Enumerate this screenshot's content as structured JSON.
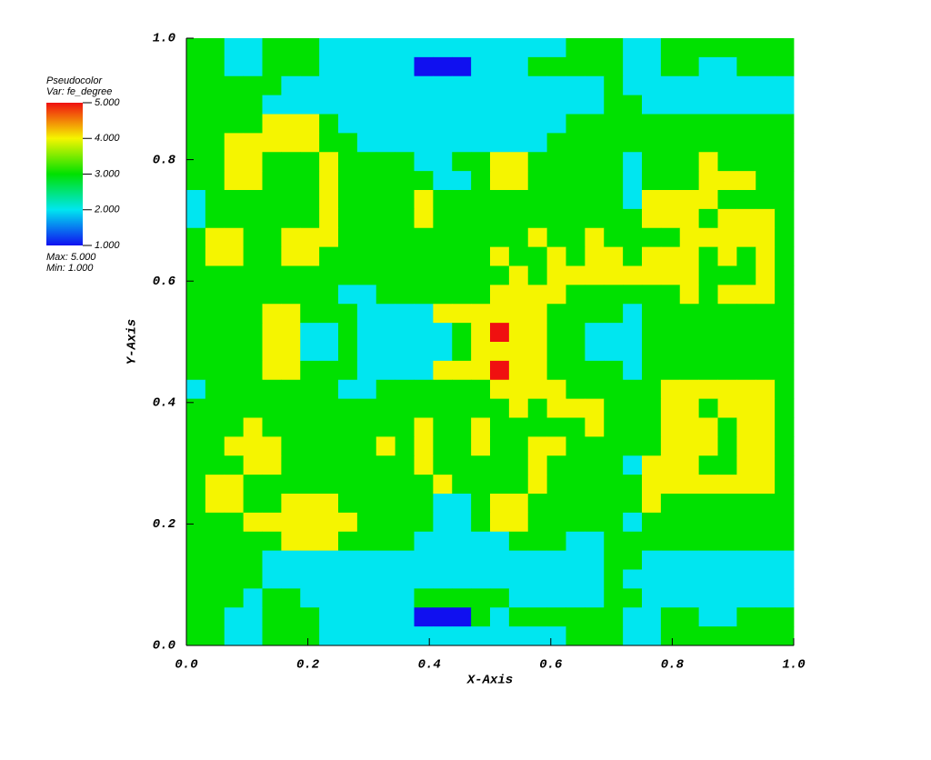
{
  "chart_data": {
    "type": "heatmap",
    "legend_title": "Pseudocolor",
    "variable_label": "Var: fe_degree",
    "max_label": "Max: 5.000",
    "min_label": "Min: 1.000",
    "xlabel": "X-Axis",
    "ylabel": "Y-Axis",
    "xlim": [
      0,
      1
    ],
    "ylim": [
      0,
      1
    ],
    "xticks": [
      {
        "value": 0,
        "label": "0.0"
      },
      {
        "value": 0.2,
        "label": "0.2"
      },
      {
        "value": 0.4,
        "label": "0.4"
      },
      {
        "value": 0.6,
        "label": "0.6"
      },
      {
        "value": 0.8,
        "label": "0.8"
      },
      {
        "value": 1,
        "label": "1.0"
      }
    ],
    "yticks": [
      {
        "value": 0,
        "label": "0.0"
      },
      {
        "value": 0.2,
        "label": "0.2"
      },
      {
        "value": 0.4,
        "label": "0.4"
      },
      {
        "value": 0.6,
        "label": "0.6"
      },
      {
        "value": 0.8,
        "label": "0.8"
      },
      {
        "value": 1,
        "label": "1.0"
      }
    ],
    "clim": [
      1,
      5
    ],
    "colorbar_ticks": [
      {
        "value": 5,
        "label": "5.000"
      },
      {
        "value": 4,
        "label": "4.000"
      },
      {
        "value": 3,
        "label": "3.000"
      },
      {
        "value": 2,
        "label": "2.000"
      },
      {
        "value": 1,
        "label": "1.000"
      }
    ],
    "colorscale": [
      "#1010f0",
      "#00e6f0",
      "#00e100",
      "#f5f500",
      "#f01010"
    ],
    "z": [
      [
        3,
        3,
        2,
        2,
        3,
        3,
        3,
        2,
        2,
        2,
        2,
        2,
        2,
        2,
        2,
        2,
        2,
        2,
        2,
        2,
        3,
        3,
        3,
        2,
        2,
        3,
        3,
        3,
        3,
        3,
        3,
        3
      ],
      [
        3,
        3,
        2,
        2,
        3,
        3,
        3,
        2,
        2,
        2,
        2,
        2,
        1,
        1,
        1,
        2,
        2,
        2,
        3,
        3,
        3,
        3,
        3,
        2,
        2,
        3,
        3,
        2,
        2,
        3,
        3,
        3
      ],
      [
        3,
        3,
        3,
        3,
        3,
        2,
        2,
        2,
        2,
        2,
        2,
        2,
        2,
        2,
        2,
        2,
        2,
        2,
        2,
        2,
        2,
        2,
        3,
        2,
        2,
        2,
        2,
        2,
        2,
        2,
        2,
        2
      ],
      [
        3,
        3,
        3,
        3,
        2,
        2,
        2,
        2,
        2,
        2,
        2,
        2,
        2,
        2,
        2,
        2,
        2,
        2,
        2,
        2,
        2,
        2,
        3,
        3,
        2,
        2,
        2,
        2,
        2,
        2,
        2,
        2
      ],
      [
        3,
        3,
        3,
        3,
        4,
        4,
        4,
        3,
        2,
        2,
        2,
        2,
        2,
        2,
        2,
        2,
        2,
        2,
        2,
        2,
        3,
        3,
        3,
        3,
        3,
        3,
        3,
        3,
        3,
        3,
        3,
        3
      ],
      [
        3,
        3,
        4,
        4,
        4,
        4,
        4,
        3,
        3,
        2,
        2,
        2,
        2,
        2,
        2,
        2,
        2,
        2,
        2,
        3,
        3,
        3,
        3,
        3,
        3,
        3,
        3,
        3,
        3,
        3,
        3,
        3
      ],
      [
        3,
        3,
        4,
        4,
        3,
        3,
        3,
        4,
        3,
        3,
        3,
        3,
        2,
        2,
        3,
        3,
        4,
        4,
        3,
        3,
        3,
        3,
        3,
        2,
        3,
        3,
        3,
        4,
        3,
        3,
        3,
        3
      ],
      [
        3,
        3,
        4,
        4,
        3,
        3,
        3,
        4,
        3,
        3,
        3,
        3,
        3,
        2,
        2,
        3,
        4,
        4,
        3,
        3,
        3,
        3,
        3,
        2,
        3,
        3,
        3,
        4,
        4,
        4,
        3,
        3
      ],
      [
        2,
        3,
        3,
        3,
        3,
        3,
        3,
        4,
        3,
        3,
        3,
        3,
        4,
        3,
        3,
        3,
        3,
        3,
        3,
        3,
        3,
        3,
        3,
        2,
        4,
        4,
        4,
        4,
        3,
        3,
        3,
        3
      ],
      [
        2,
        3,
        3,
        3,
        3,
        3,
        3,
        4,
        3,
        3,
        3,
        3,
        4,
        3,
        3,
        3,
        3,
        3,
        3,
        3,
        3,
        3,
        3,
        3,
        4,
        4,
        4,
        3,
        4,
        4,
        4,
        3
      ],
      [
        3,
        4,
        4,
        3,
        3,
        4,
        4,
        4,
        3,
        3,
        3,
        3,
        3,
        3,
        3,
        3,
        3,
        3,
        4,
        3,
        3,
        4,
        3,
        3,
        3,
        3,
        4,
        4,
        4,
        4,
        4,
        3
      ],
      [
        3,
        4,
        4,
        3,
        3,
        4,
        4,
        3,
        3,
        3,
        3,
        3,
        3,
        3,
        3,
        3,
        4,
        3,
        3,
        4,
        3,
        4,
        4,
        3,
        4,
        4,
        4,
        3,
        4,
        3,
        4,
        3
      ],
      [
        3,
        3,
        3,
        3,
        3,
        3,
        3,
        3,
        3,
        3,
        3,
        3,
        3,
        3,
        3,
        3,
        3,
        4,
        3,
        4,
        4,
        4,
        4,
        4,
        4,
        4,
        4,
        3,
        3,
        3,
        4,
        3
      ],
      [
        3,
        3,
        3,
        3,
        3,
        3,
        3,
        3,
        2,
        2,
        3,
        3,
        3,
        3,
        3,
        3,
        4,
        4,
        4,
        4,
        3,
        3,
        3,
        3,
        3,
        3,
        4,
        3,
        4,
        4,
        4,
        3
      ],
      [
        3,
        3,
        3,
        3,
        4,
        4,
        3,
        3,
        3,
        2,
        2,
        2,
        2,
        4,
        4,
        4,
        4,
        4,
        4,
        3,
        3,
        3,
        3,
        2,
        3,
        3,
        3,
        3,
        3,
        3,
        3,
        3
      ],
      [
        3,
        3,
        3,
        3,
        4,
        4,
        2,
        2,
        3,
        2,
        2,
        2,
        2,
        2,
        3,
        4,
        5,
        4,
        4,
        3,
        3,
        2,
        2,
        2,
        3,
        3,
        3,
        3,
        3,
        3,
        3,
        3
      ],
      [
        3,
        3,
        3,
        3,
        4,
        4,
        2,
        2,
        3,
        2,
        2,
        2,
        2,
        2,
        3,
        4,
        4,
        4,
        4,
        3,
        3,
        2,
        2,
        2,
        3,
        3,
        3,
        3,
        3,
        3,
        3,
        3
      ],
      [
        3,
        3,
        3,
        3,
        4,
        4,
        3,
        3,
        3,
        2,
        2,
        2,
        2,
        4,
        4,
        4,
        5,
        4,
        4,
        3,
        3,
        3,
        3,
        2,
        3,
        3,
        3,
        3,
        3,
        3,
        3,
        3
      ],
      [
        2,
        3,
        3,
        3,
        3,
        3,
        3,
        3,
        2,
        2,
        3,
        3,
        3,
        3,
        3,
        3,
        4,
        4,
        4,
        4,
        3,
        3,
        3,
        3,
        3,
        4,
        4,
        4,
        4,
        4,
        4,
        3
      ],
      [
        3,
        3,
        3,
        3,
        3,
        3,
        3,
        3,
        3,
        3,
        3,
        3,
        3,
        3,
        3,
        3,
        3,
        4,
        3,
        4,
        4,
        4,
        3,
        3,
        3,
        4,
        4,
        3,
        4,
        4,
        4,
        3
      ],
      [
        3,
        3,
        3,
        4,
        3,
        3,
        3,
        3,
        3,
        3,
        3,
        3,
        4,
        3,
        3,
        4,
        3,
        3,
        3,
        3,
        3,
        4,
        3,
        3,
        3,
        4,
        4,
        4,
        3,
        4,
        4,
        3
      ],
      [
        3,
        3,
        4,
        4,
        4,
        3,
        3,
        3,
        3,
        3,
        4,
        3,
        4,
        3,
        3,
        4,
        3,
        3,
        4,
        4,
        3,
        3,
        3,
        3,
        3,
        4,
        4,
        4,
        3,
        4,
        4,
        3
      ],
      [
        3,
        3,
        3,
        4,
        4,
        3,
        3,
        3,
        3,
        3,
        3,
        3,
        4,
        3,
        3,
        3,
        3,
        3,
        4,
        3,
        3,
        3,
        3,
        2,
        4,
        4,
        4,
        3,
        3,
        4,
        4,
        3
      ],
      [
        3,
        4,
        4,
        3,
        3,
        3,
        3,
        3,
        3,
        3,
        3,
        3,
        3,
        4,
        3,
        3,
        3,
        3,
        4,
        3,
        3,
        3,
        3,
        3,
        4,
        4,
        4,
        4,
        4,
        4,
        4,
        3
      ],
      [
        3,
        4,
        4,
        3,
        3,
        4,
        4,
        4,
        3,
        3,
        3,
        3,
        3,
        2,
        2,
        3,
        4,
        4,
        3,
        3,
        3,
        3,
        3,
        3,
        4,
        3,
        3,
        3,
        3,
        3,
        3,
        3
      ],
      [
        3,
        3,
        3,
        4,
        4,
        4,
        4,
        4,
        4,
        3,
        3,
        3,
        3,
        2,
        2,
        3,
        4,
        4,
        3,
        3,
        3,
        3,
        3,
        2,
        3,
        3,
        3,
        3,
        3,
        3,
        3,
        3
      ],
      [
        3,
        3,
        3,
        3,
        3,
        4,
        4,
        4,
        3,
        3,
        3,
        3,
        2,
        2,
        2,
        2,
        2,
        3,
        3,
        3,
        2,
        2,
        3,
        3,
        3,
        3,
        3,
        3,
        3,
        3,
        3,
        3
      ],
      [
        3,
        3,
        3,
        3,
        2,
        2,
        2,
        2,
        2,
        2,
        2,
        2,
        2,
        2,
        2,
        2,
        2,
        2,
        2,
        2,
        2,
        2,
        3,
        3,
        2,
        2,
        2,
        2,
        2,
        2,
        2,
        2
      ],
      [
        3,
        3,
        3,
        3,
        2,
        2,
        2,
        2,
        2,
        2,
        2,
        2,
        2,
        2,
        2,
        2,
        2,
        2,
        2,
        2,
        2,
        2,
        3,
        2,
        2,
        2,
        2,
        2,
        2,
        2,
        2,
        2
      ],
      [
        3,
        3,
        3,
        2,
        3,
        3,
        2,
        2,
        2,
        2,
        2,
        2,
        3,
        3,
        3,
        3,
        3,
        2,
        2,
        2,
        2,
        2,
        3,
        3,
        2,
        2,
        2,
        2,
        2,
        2,
        2,
        2
      ],
      [
        3,
        3,
        2,
        2,
        3,
        3,
        3,
        2,
        2,
        2,
        2,
        2,
        1,
        1,
        1,
        3,
        2,
        3,
        3,
        3,
        3,
        3,
        3,
        2,
        2,
        3,
        3,
        2,
        2,
        3,
        3,
        3
      ],
      [
        3,
        3,
        2,
        2,
        3,
        3,
        3,
        2,
        2,
        2,
        2,
        2,
        2,
        2,
        2,
        2,
        2,
        2,
        2,
        2,
        3,
        3,
        3,
        2,
        2,
        3,
        3,
        3,
        3,
        3,
        3,
        3
      ]
    ]
  }
}
